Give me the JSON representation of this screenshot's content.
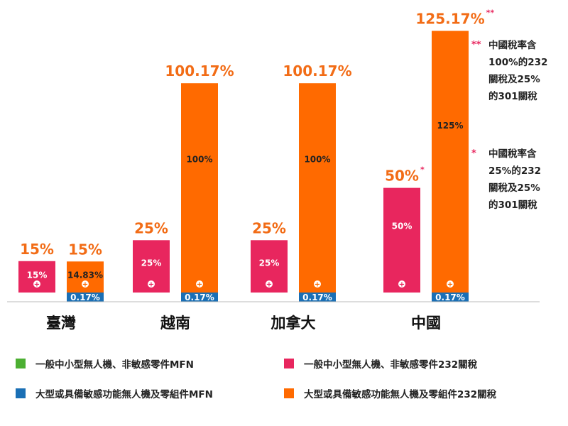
{
  "chart_data": {
    "type": "bar",
    "subtype": "stacked-grouped",
    "categories": [
      "臺灣",
      "越南",
      "加拿大",
      "中國"
    ],
    "series": [
      {
        "name": "一般中小型無人機、非敏感零件MFN",
        "color": "#4caf32",
        "group": "small",
        "values": [
          0,
          0,
          0,
          0
        ],
        "labels": [
          "0%",
          "0%",
          "0%",
          "0%"
        ]
      },
      {
        "name": "一般中小型無人機、非敏感零件232關稅",
        "color": "#e8265e",
        "group": "small",
        "values": [
          15,
          25,
          25,
          50
        ],
        "labels": [
          "15%",
          "25%",
          "25%",
          "50%"
        ]
      },
      {
        "name": "大型或具備敏感功能無人機及零組件MFN",
        "color": "#1a6fb5",
        "group": "large",
        "values": [
          0.17,
          0.17,
          0.17,
          0.17
        ],
        "labels": [
          "0.17%",
          "0.17%",
          "0.17%",
          "0.17%"
        ]
      },
      {
        "name": "大型或具備敏感功能無人機及零組件232關稅",
        "color": "#ff6a00",
        "group": "large",
        "values": [
          14.83,
          100,
          100,
          125
        ],
        "labels": [
          "14.83%",
          "100%",
          "100%",
          "125%"
        ]
      }
    ],
    "totals": {
      "small": [
        "15%",
        "25%",
        "25%",
        "50%"
      ],
      "large": [
        "15%",
        "100.17%",
        "100.17%",
        "125.17%"
      ]
    },
    "total_marks": {
      "small": [
        "",
        "",
        "",
        "*"
      ],
      "large": [
        "",
        "",
        "",
        "**"
      ]
    },
    "plus_symbol": "+",
    "ylim": [
      0,
      125.17
    ],
    "grid": false,
    "legend_position": "bottom",
    "notes": [
      {
        "mark": "**",
        "lines": [
          "中國稅率含",
          "100%的232",
          "關稅及25%",
          "的301關稅"
        ]
      },
      {
        "mark": "*",
        "lines": [
          "中國稅率含",
          "25%的232",
          "關稅及25%",
          "的301關稅"
        ]
      }
    ]
  }
}
